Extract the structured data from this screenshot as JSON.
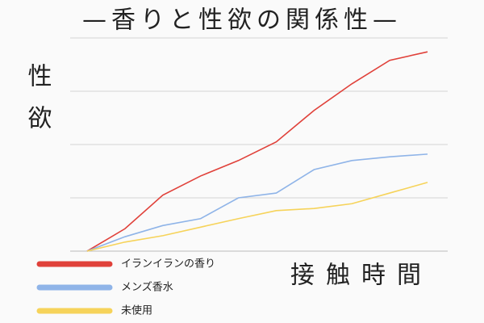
{
  "chart_data": {
    "type": "line",
    "title": "—香りと性欲の関係性—",
    "y_label": "性欲",
    "x_label": "接触時間",
    "categories": [
      null,
      null,
      null,
      null,
      null,
      null,
      null,
      null,
      null,
      null
    ],
    "series": [
      {
        "name": "イランイランの香り",
        "color": "#e0413a",
        "values": [
          0,
          0.42,
          1.05,
          1.41,
          1.7,
          2.05,
          2.64,
          3.14,
          3.58,
          3.74
        ]
      },
      {
        "name": "メンズ香水",
        "color": "#8fb4e8",
        "values": [
          0,
          0.27,
          0.48,
          0.61,
          1.0,
          1.09,
          1.53,
          1.7,
          1.77,
          1.82
        ]
      },
      {
        "name": "未使用",
        "color": "#f6d35a",
        "values": [
          0,
          0.17,
          0.29,
          0.45,
          0.61,
          0.76,
          0.8,
          0.89,
          1.09,
          1.29
        ]
      }
    ],
    "ylim": [
      0,
      4
    ],
    "yticks": [
      0,
      1,
      2,
      3,
      4
    ],
    "grid": true
  }
}
